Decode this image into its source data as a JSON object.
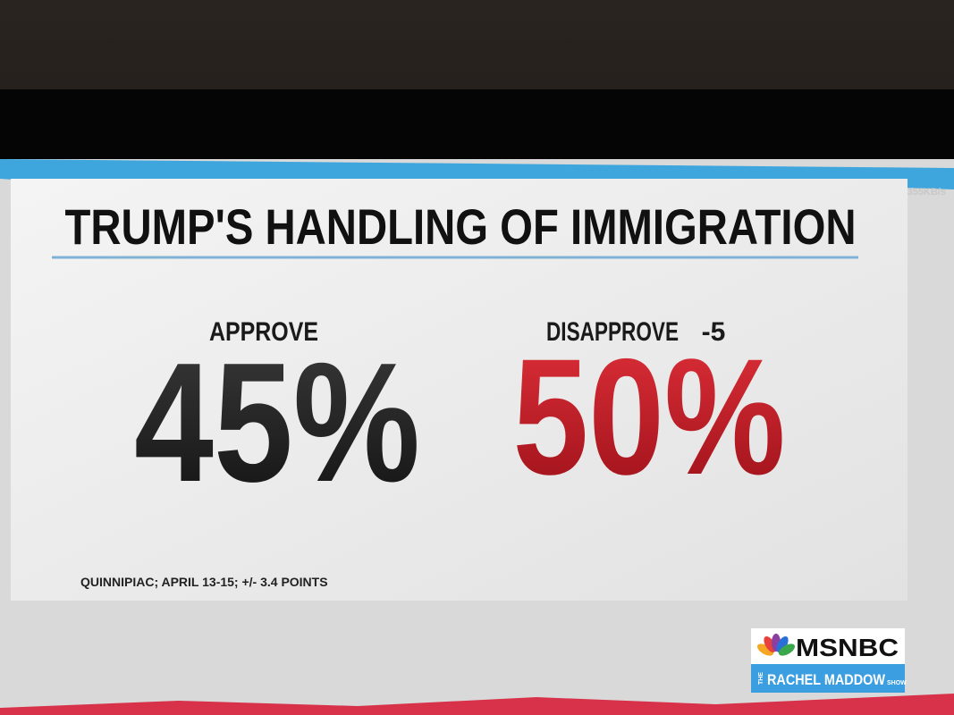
{
  "title": "TRUMP'S HANDLING OF IMMIGRATION",
  "results": [
    {
      "label": "APPROVE",
      "value": "45%"
    },
    {
      "label": "DISAPPROVE",
      "margin": "-5",
      "value": "50%"
    }
  ],
  "source": "QUINNIPIAC; APRIL 13-15; +/- 3.4 POINTS",
  "overlay": "355KB/s",
  "logo": {
    "network": "MSNBC",
    "show_prefix": "THE",
    "show": "RACHEL MADDOW",
    "show_suffix": "SHOW"
  }
}
